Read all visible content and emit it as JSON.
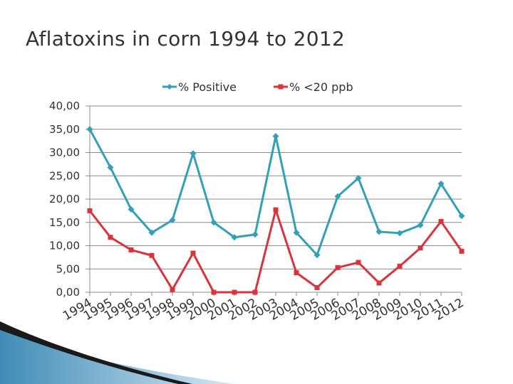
{
  "slide": {
    "title": "Aflatoxins in corn 1994 to 2012"
  },
  "chart_data": {
    "type": "line",
    "title": "Aflatoxins in corn 1994 to 2012",
    "xlabel": "",
    "ylabel": "",
    "categories": [
      "1994",
      "1995",
      "1996",
      "1997",
      "1998",
      "1999",
      "2000",
      "2001",
      "2002",
      "2003",
      "2004",
      "2005",
      "2006",
      "2007",
      "2008",
      "2009",
      "2010",
      "2011",
      "2012"
    ],
    "ylim": [
      0,
      40
    ],
    "yticks": [
      "0,00",
      "5,00",
      "10,00",
      "15,00",
      "20,00",
      "25,00",
      "30,00",
      "35,00",
      "40,00"
    ],
    "grid": true,
    "legend_position": "top",
    "series": [
      {
        "name": "% Positive",
        "color": "#31a0b8",
        "marker": "diamond",
        "values": [
          35.0,
          26.8,
          17.8,
          12.8,
          15.5,
          29.8,
          15.0,
          11.8,
          12.4,
          33.5,
          12.8,
          8.0,
          20.6,
          24.5,
          13.0,
          12.7,
          14.4,
          23.3,
          16.4
        ]
      },
      {
        "name": "% <20 ppb",
        "color": "#d9343b",
        "marker": "square",
        "values": [
          17.5,
          11.8,
          9.1,
          7.9,
          0.6,
          8.4,
          0.0,
          0.0,
          0.0,
          17.7,
          4.2,
          1.0,
          5.3,
          6.4,
          2.0,
          5.6,
          9.5,
          15.2,
          8.8
        ]
      }
    ]
  }
}
